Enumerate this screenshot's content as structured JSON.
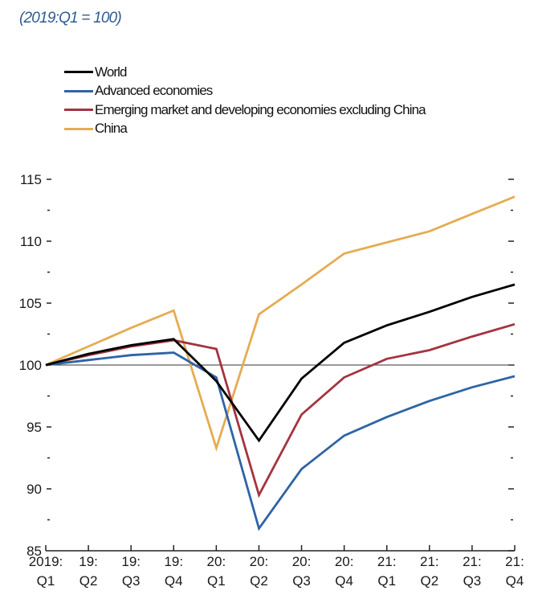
{
  "chart_data": {
    "type": "line",
    "title": "",
    "subtitle": "(2019:Q1 = 100)",
    "xlabel": "",
    "ylabel": "",
    "x": [
      "2019:Q1",
      "19:Q2",
      "19:Q3",
      "19:Q4",
      "20:Q1",
      "20:Q2",
      "20:Q3",
      "20:Q4",
      "21:Q1",
      "21:Q2",
      "21:Q3",
      "21:Q4"
    ],
    "x_tick_labels": [
      [
        "2019:",
        "Q1"
      ],
      [
        "19:",
        "Q2"
      ],
      [
        "19:",
        "Q3"
      ],
      [
        "19:",
        "Q4"
      ],
      [
        "20:",
        "Q1"
      ],
      [
        "20:",
        "Q2"
      ],
      [
        "20:",
        "Q3"
      ],
      [
        "20:",
        "Q4"
      ],
      [
        "21:",
        "Q1"
      ],
      [
        "21:",
        "Q2"
      ],
      [
        "21:",
        "Q3"
      ],
      [
        "21:",
        "Q4"
      ]
    ],
    "ylim": [
      85,
      115
    ],
    "y_major_ticks": [
      85,
      90,
      95,
      100,
      105,
      110,
      115
    ],
    "y_minor_ticks": [
      87.5,
      92.5,
      97.5,
      102.5,
      107.5,
      112.5
    ],
    "reference_line": 100,
    "grid": false,
    "legend_position": "top-left",
    "series": [
      {
        "name": "World",
        "color": "#000000",
        "values": [
          100,
          100.9,
          101.6,
          102.1,
          98.7,
          93.9,
          98.9,
          101.8,
          103.2,
          104.3,
          105.5,
          106.5
        ]
      },
      {
        "name": "Advanced economies",
        "color": "#2e64a6",
        "values": [
          100,
          100.4,
          100.8,
          101.0,
          99.0,
          86.8,
          91.6,
          94.3,
          95.8,
          97.1,
          98.2,
          99.1
        ]
      },
      {
        "name": "Emerging market and developing economies excluding China",
        "color": "#a3343f",
        "values": [
          100,
          100.8,
          101.5,
          102.0,
          101.3,
          89.5,
          96.0,
          99.0,
          100.5,
          101.2,
          102.3,
          103.3
        ]
      },
      {
        "name": "China",
        "color": "#e5ac52",
        "values": [
          100,
          101.5,
          103.0,
          104.4,
          93.3,
          104.1,
          106.5,
          109.0,
          109.9,
          110.8,
          112.2,
          113.6
        ]
      }
    ]
  }
}
